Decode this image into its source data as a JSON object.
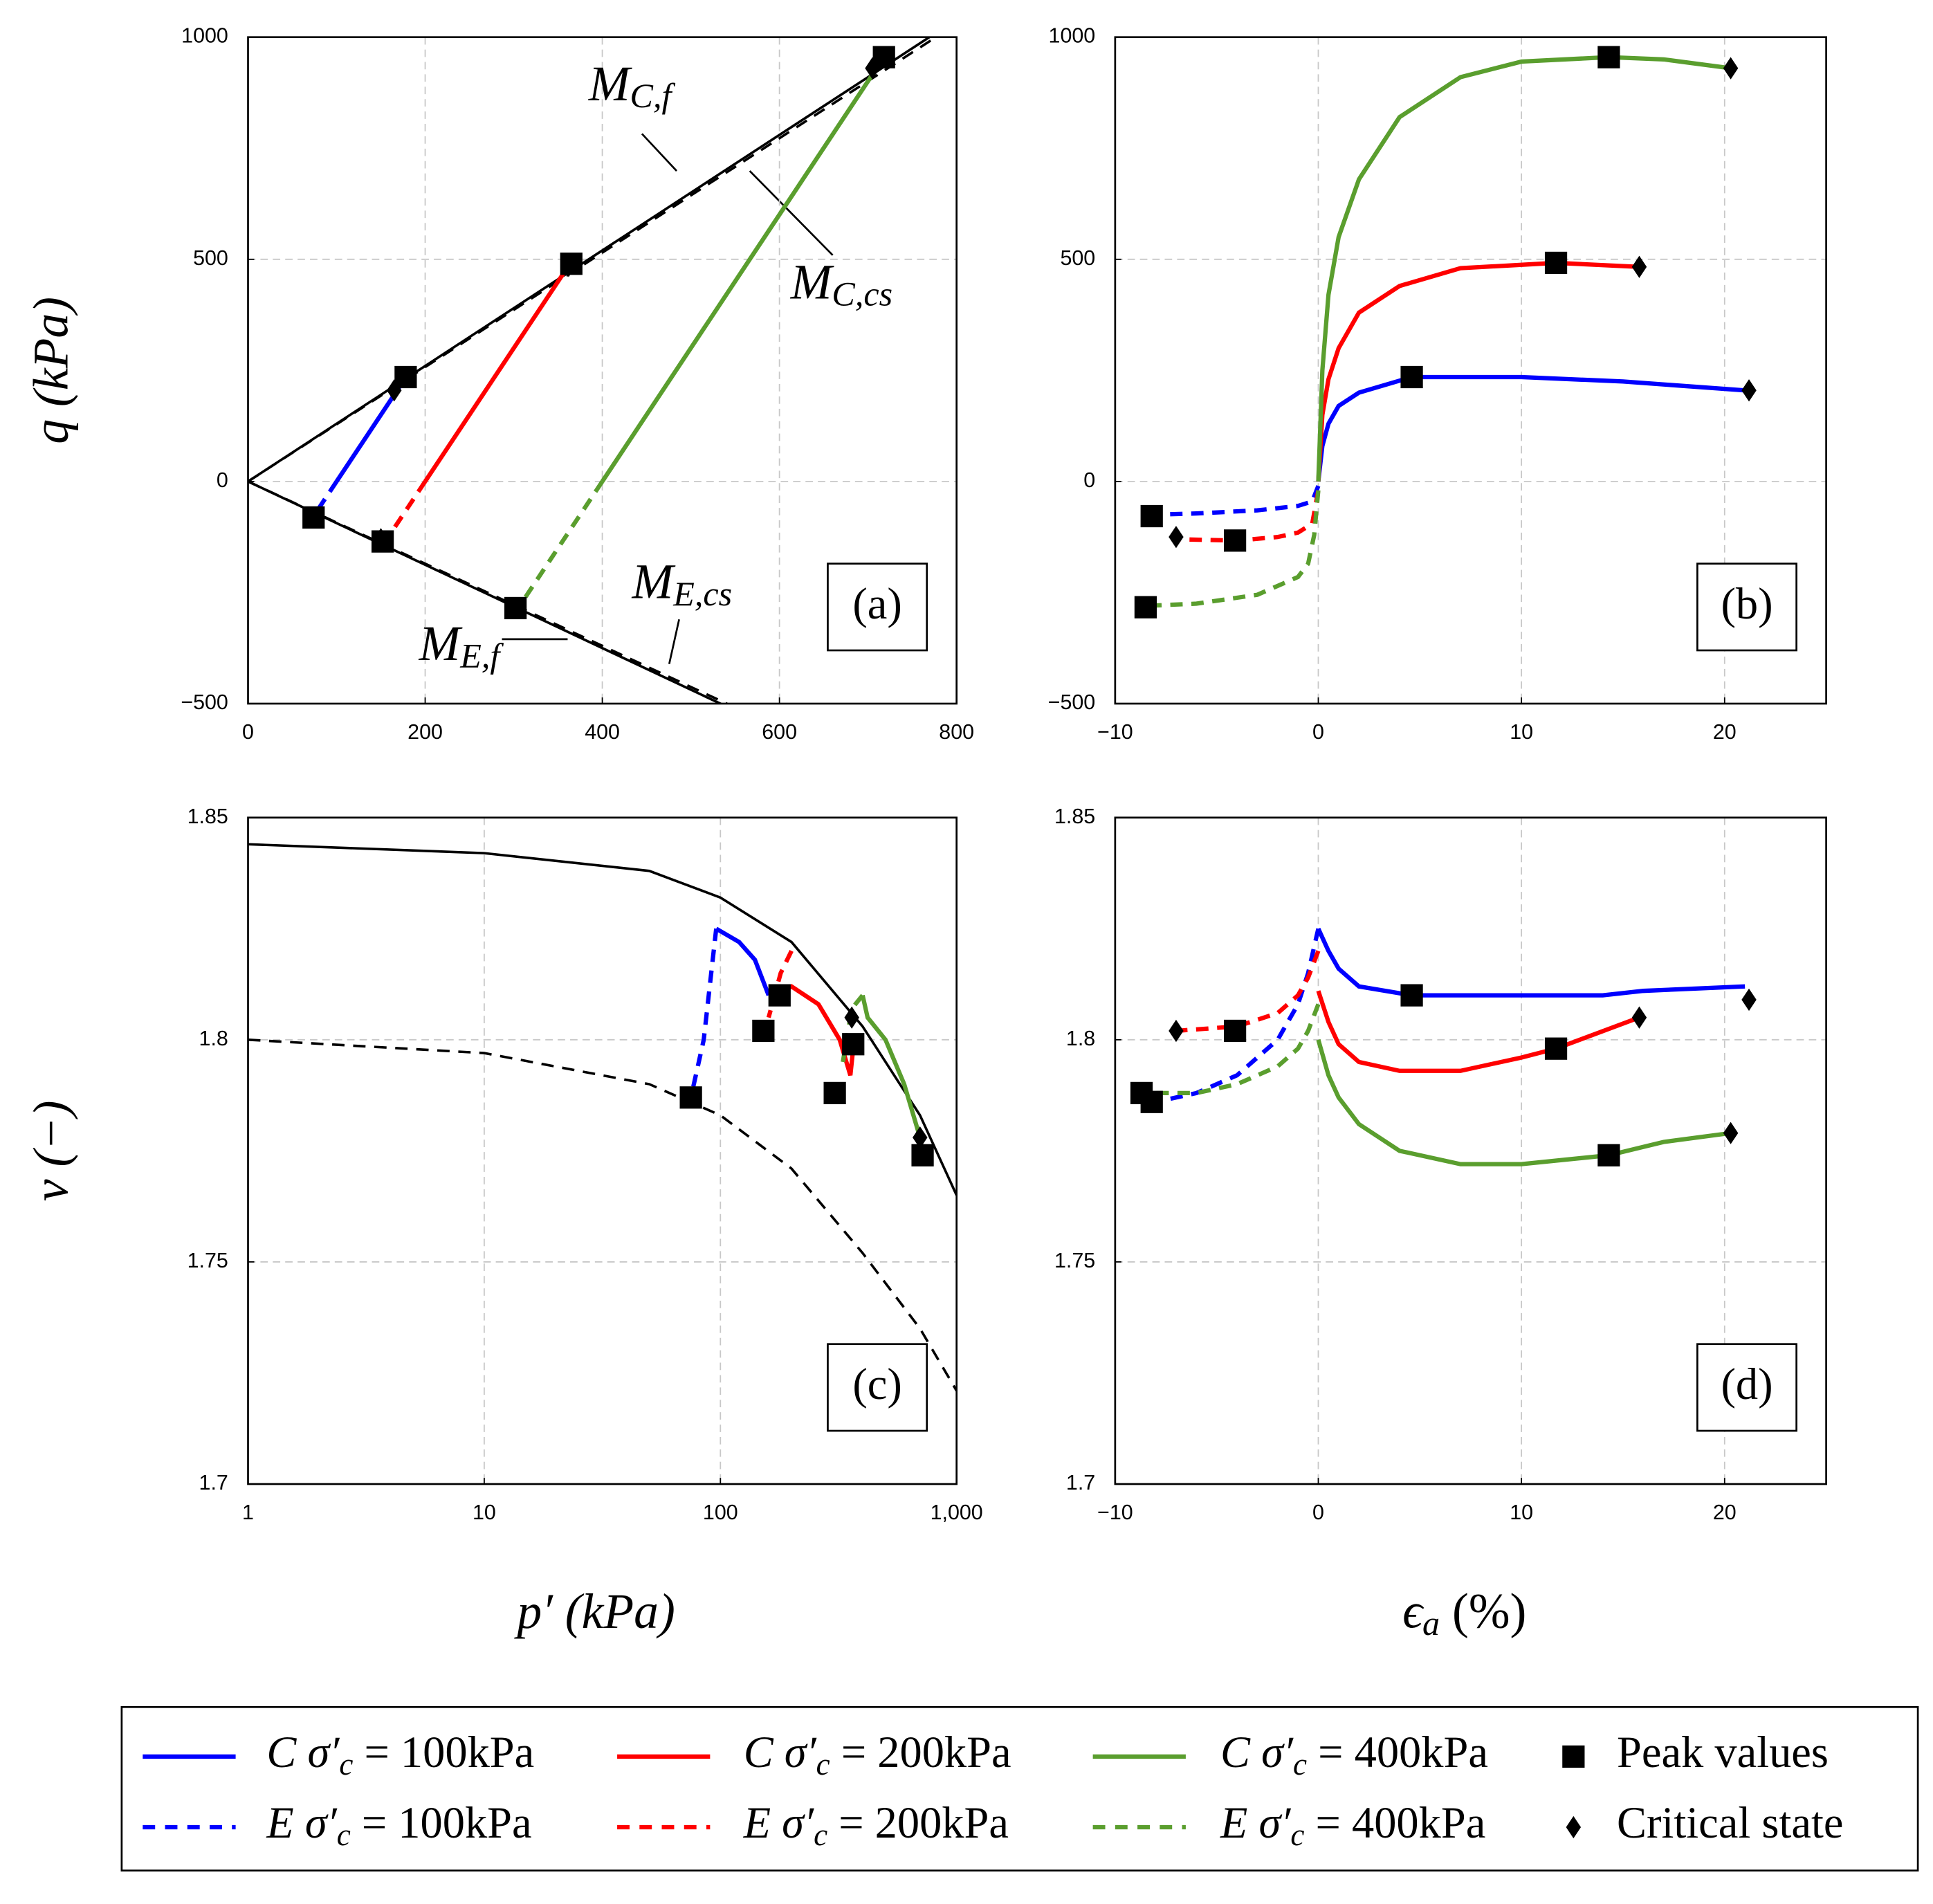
{
  "chart_data": [
    {
      "type": "line",
      "panel_label": "(a)",
      "ylabel": "q (kPa)",
      "xlim": [
        0,
        800
      ],
      "ylim": [
        -500,
        1000
      ],
      "xticks": [
        0,
        200,
        400,
        600,
        800
      ],
      "yticks": [
        {
          "value": -500,
          "label": "−500"
        },
        0,
        500,
        1000
      ],
      "grid": true,
      "series": [
        {
          "color": "#000000",
          "dash": false,
          "x": [
            0,
            800
          ],
          "values": [
            0,
            1040
          ]
        },
        {
          "color": "#000000",
          "dash": true,
          "x": [
            0,
            800
          ],
          "values": [
            0,
            1030
          ]
        },
        {
          "color": "#000000",
          "dash": false,
          "x": [
            0,
            560
          ],
          "values": [
            0,
            -525
          ]
        },
        {
          "color": "#000000",
          "dash": true,
          "x": [
            0,
            560
          ],
          "values": [
            0,
            -518
          ]
        },
        {
          "color": "#0000ff",
          "dash": false,
          "x": [
            100,
            178
          ],
          "values": [
            0,
            234
          ]
        },
        {
          "color": "#0000ff",
          "dash": true,
          "x": [
            100,
            75
          ],
          "values": [
            0,
            -75
          ]
        },
        {
          "color": "#ff0000",
          "dash": false,
          "x": [
            200,
            365
          ],
          "values": [
            0,
            495
          ]
        },
        {
          "color": "#ff0000",
          "dash": true,
          "x": [
            200,
            155
          ],
          "values": [
            0,
            -135
          ]
        },
        {
          "color": "#5a9e2e",
          "dash": false,
          "x": [
            400,
            718
          ],
          "values": [
            0,
            955
          ]
        },
        {
          "color": "#5a9e2e",
          "dash": true,
          "x": [
            400,
            305
          ],
          "values": [
            0,
            -285
          ]
        },
        {
          "marker": "square",
          "color": "#000000",
          "x": [
            178,
            74,
            365,
            152,
            718,
            302
          ],
          "values": [
            235,
            -81,
            490,
            -135,
            955,
            -285
          ]
        },
        {
          "marker": "diamond",
          "color": "#000000",
          "x": [
            165,
            150,
            362,
            705
          ],
          "values": [
            205,
            -130,
            485,
            930
          ]
        }
      ],
      "annotations": [
        {
          "text": "M",
          "sub": "C,f"
        },
        {
          "text": "M",
          "sub": "C,cs"
        },
        {
          "text": "M",
          "sub": "E,cs"
        },
        {
          "text": "M",
          "sub": "E,f"
        }
      ]
    },
    {
      "type": "line",
      "panel_label": "(b)",
      "xlim": [
        -10,
        25
      ],
      "ylim": [
        -500,
        1000
      ],
      "xticks": [
        {
          "value": -10,
          "label": "−10"
        },
        0,
        10,
        20
      ],
      "yticks": [
        {
          "value": -500,
          "label": "−500"
        },
        0,
        500,
        1000
      ],
      "grid": true,
      "series": [
        {
          "color": "#0000ff",
          "dash": false,
          "x": [
            0,
            0.2,
            0.5,
            1,
            2,
            4.6,
            10,
            15,
            21
          ],
          "values": [
            0,
            80,
            130,
            170,
            200,
            235,
            235,
            225,
            205
          ]
        },
        {
          "color": "#ff0000",
          "dash": false,
          "x": [
            0,
            0.2,
            0.5,
            1,
            2,
            4,
            7,
            11.7,
            15.8
          ],
          "values": [
            0,
            150,
            230,
            300,
            380,
            440,
            480,
            492,
            483
          ]
        },
        {
          "color": "#5a9e2e",
          "dash": false,
          "x": [
            0,
            0.2,
            0.5,
            1,
            2,
            4,
            7,
            10,
            14.3,
            17,
            20.3
          ],
          "values": [
            0,
            250,
            420,
            550,
            680,
            820,
            910,
            945,
            955,
            950,
            930
          ]
        },
        {
          "color": "#0000ff",
          "dash": true,
          "x": [
            0,
            -0.3,
            -1,
            -3,
            -6,
            -8.2
          ],
          "values": [
            -10,
            -45,
            -55,
            -65,
            -72,
            -75
          ]
        },
        {
          "color": "#ff0000",
          "dash": true,
          "x": [
            0,
            -0.3,
            -1,
            -2,
            -4,
            -7
          ],
          "values": [
            -20,
            -95,
            -115,
            -125,
            -133,
            -130
          ]
        },
        {
          "color": "#5a9e2e",
          "dash": true,
          "x": [
            0,
            -0.2,
            -0.5,
            -1,
            -3,
            -6,
            -8.5
          ],
          "values": [
            -20,
            -120,
            -185,
            -215,
            -255,
            -275,
            -280
          ]
        },
        {
          "marker": "square",
          "color": "#000000",
          "x": [
            4.6,
            11.7,
            14.3,
            -8.2,
            -4.1,
            -8.5
          ],
          "values": [
            235,
            492,
            955,
            -78,
            -133,
            -283
          ]
        },
        {
          "marker": "diamond",
          "color": "#000000",
          "x": [
            21.2,
            15.8,
            20.3,
            -7
          ],
          "values": [
            205,
            483,
            930,
            -125
          ]
        }
      ]
    },
    {
      "type": "line",
      "panel_label": "(c)",
      "ylabel": "v (−)",
      "xlabel": "p′ (kPa)",
      "xlog": true,
      "xlim": [
        1,
        1000
      ],
      "ylim": [
        1.7,
        1.85
      ],
      "xticks": [
        1,
        10,
        100,
        {
          "value": 1000,
          "label": "1,000"
        }
      ],
      "yticks": [
        1.7,
        1.75,
        1.8,
        1.85
      ],
      "grid": true,
      "series": [
        {
          "color": "#000000",
          "dash": false,
          "x": [
            1,
            10,
            50,
            100,
            200,
            400,
            700,
            1000
          ],
          "values": [
            1.844,
            1.842,
            1.838,
            1.832,
            1.822,
            1.803,
            1.783,
            1.765
          ]
        },
        {
          "color": "#000000",
          "dash": true,
          "x": [
            1,
            10,
            50,
            100,
            200,
            400,
            700,
            1000
          ],
          "values": [
            1.8,
            1.797,
            1.79,
            1.783,
            1.771,
            1.752,
            1.735,
            1.721
          ]
        },
        {
          "color": "#0000ff",
          "dash": false,
          "x": [
            96,
            120,
            140,
            160
          ],
          "values": [
            1.825,
            1.822,
            1.818,
            1.81
          ]
        },
        {
          "color": "#0000ff",
          "dash": true,
          "x": [
            96,
            85,
            75
          ],
          "values": [
            1.825,
            1.8,
            1.787
          ]
        },
        {
          "color": "#ff0000",
          "dash": false,
          "x": [
            170,
            200,
            260,
            320,
            355,
            365
          ],
          "values": [
            1.81,
            1.812,
            1.808,
            1.8,
            1.792,
            1.798
          ]
        },
        {
          "color": "#ff0000",
          "dash": true,
          "x": [
            200,
            180,
            160
          ],
          "values": [
            1.82,
            1.815,
            1.805
          ]
        },
        {
          "color": "#5a9e2e",
          "dash": false,
          "x": [
            400,
            420,
            500,
            600,
            700
          ],
          "values": [
            1.81,
            1.805,
            1.8,
            1.79,
            1.778
          ]
        },
        {
          "color": "#5a9e2e",
          "dash": true,
          "x": [
            400,
            360,
            330
          ],
          "values": [
            1.81,
            1.807,
            1.795
          ]
        },
        {
          "marker": "square",
          "color": "#000000",
          "x": [
            75,
            152,
            178,
            305,
            365,
            718
          ],
          "values": [
            1.787,
            1.802,
            1.81,
            1.788,
            1.799,
            1.774
          ]
        },
        {
          "marker": "diamond",
          "color": "#000000",
          "x": [
            360,
            700
          ],
          "values": [
            1.805,
            1.778
          ]
        }
      ]
    },
    {
      "type": "line",
      "panel_label": "(d)",
      "xlabel": {
        "text": "ϵ",
        "sub": "a",
        "rest": " (%)"
      },
      "xlim": [
        -10,
        25
      ],
      "ylim": [
        1.7,
        1.85
      ],
      "xticks": [
        {
          "value": -10,
          "label": "−10"
        },
        0,
        10,
        20
      ],
      "yticks": [
        1.7,
        1.75,
        1.8,
        1.85
      ],
      "grid": true,
      "series": [
        {
          "color": "#0000ff",
          "dash": false,
          "x": [
            0,
            0.5,
            1,
            2,
            4.6,
            10,
            14,
            16,
            21
          ],
          "values": [
            1.825,
            1.82,
            1.816,
            1.812,
            1.81,
            1.81,
            1.81,
            1.811,
            1.812
          ]
        },
        {
          "color": "#ff0000",
          "dash": false,
          "x": [
            0,
            0.5,
            1,
            2,
            4,
            7,
            10,
            11.7,
            15.8
          ],
          "values": [
            1.811,
            1.804,
            1.799,
            1.795,
            1.793,
            1.793,
            1.796,
            1.798,
            1.805
          ]
        },
        {
          "color": "#5a9e2e",
          "dash": false,
          "x": [
            0,
            0.5,
            1,
            2,
            4,
            7,
            10,
            14.3,
            17,
            20.3
          ],
          "values": [
            1.8,
            1.792,
            1.787,
            1.781,
            1.775,
            1.772,
            1.772,
            1.774,
            1.777,
            1.779
          ]
        },
        {
          "color": "#0000ff",
          "dash": true,
          "x": [
            0,
            -0.5,
            -1,
            -2,
            -4,
            -6,
            -8,
            -8.7
          ],
          "values": [
            1.825,
            1.815,
            1.808,
            1.8,
            1.792,
            1.788,
            1.786,
            1.786
          ]
        },
        {
          "color": "#ff0000",
          "dash": true,
          "x": [
            0,
            -0.5,
            -1,
            -2,
            -4,
            -7
          ],
          "values": [
            1.82,
            1.814,
            1.81,
            1.806,
            1.803,
            1.802
          ]
        },
        {
          "color": "#5a9e2e",
          "dash": true,
          "x": [
            0,
            -0.5,
            -1,
            -2,
            -4,
            -6,
            -8.7
          ],
          "values": [
            1.808,
            1.802,
            1.798,
            1.794,
            1.79,
            1.788,
            1.788
          ]
        },
        {
          "marker": "square",
          "color": "#000000",
          "x": [
            4.6,
            11.7,
            14.3,
            -4.1,
            -8.7,
            -8.2
          ],
          "values": [
            1.81,
            1.798,
            1.774,
            1.802,
            1.788,
            1.786
          ]
        },
        {
          "marker": "diamond",
          "color": "#000000",
          "x": [
            21.2,
            15.8,
            20.3,
            -7
          ],
          "values": [
            1.809,
            1.805,
            1.779,
            1.802
          ]
        }
      ]
    }
  ],
  "legend": [
    {
      "label": "C σ′",
      "sub": "c",
      "rest": " = 100kPa",
      "color": "#0000ff",
      "dash": false
    },
    {
      "label": "C σ′",
      "sub": "c",
      "rest": " = 200kPa",
      "color": "#ff0000",
      "dash": false
    },
    {
      "label": "C σ′",
      "sub": "c",
      "rest": " = 400kPa",
      "color": "#5a9e2e",
      "dash": false
    },
    {
      "label": "Peak values",
      "marker": "square",
      "color": "#000000"
    },
    {
      "label": "E σ′",
      "sub": "c",
      "rest": " = 100kPa",
      "color": "#0000ff",
      "dash": true
    },
    {
      "label": "E σ′",
      "sub": "c",
      "rest": " = 200kPa",
      "color": "#ff0000",
      "dash": true
    },
    {
      "label": "E σ′",
      "sub": "c",
      "rest": " = 400kPa",
      "color": "#5a9e2e",
      "dash": true
    },
    {
      "label": "Critical state",
      "marker": "diamond",
      "color": "#000000"
    }
  ]
}
